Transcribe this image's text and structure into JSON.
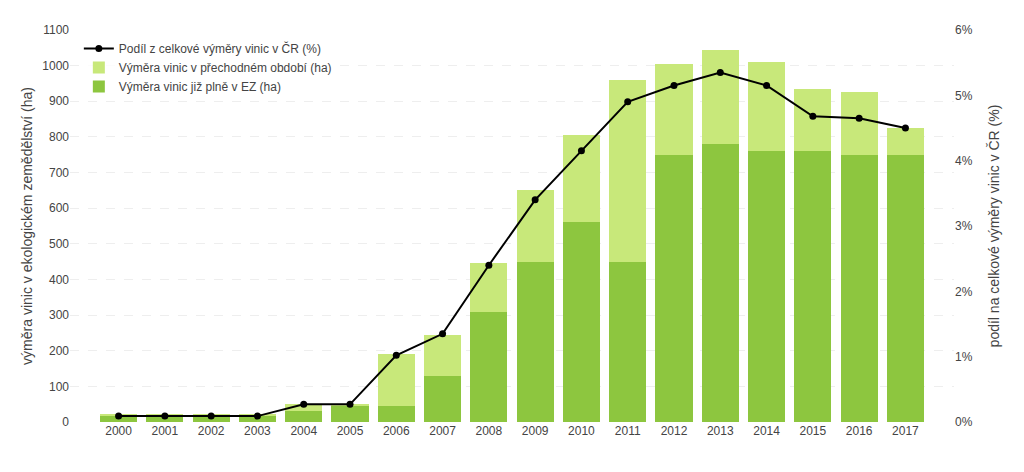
{
  "chart_data": {
    "type": "bar",
    "stacked": true,
    "categories": [
      "2000",
      "2001",
      "2002",
      "2003",
      "2004",
      "2005",
      "2006",
      "2007",
      "2008",
      "2009",
      "2010",
      "2011",
      "2012",
      "2013",
      "2014",
      "2015",
      "2016",
      "2017"
    ],
    "series": [
      {
        "name": "Výměra vinic již plně v EZ (ha)",
        "color": "#8DC63F",
        "values": [
          17,
          17,
          17,
          17,
          30,
          45,
          45,
          130,
          310,
          450,
          560,
          450,
          750,
          780,
          760,
          760,
          750,
          750
        ]
      },
      {
        "name": "Výměra vinic v přechodném období (ha)",
        "color": "#C8E87A",
        "values": [
          3,
          3,
          3,
          3,
          20,
          5,
          145,
          115,
          135,
          200,
          245,
          510,
          255,
          265,
          250,
          175,
          175,
          75
        ]
      },
      {
        "name": "Podíl z celkové výměry vinic v ČR (%)",
        "type": "line",
        "axis": "y2",
        "color": "#000000",
        "marker": "circle",
        "values": [
          0.09,
          0.09,
          0.09,
          0.09,
          0.27,
          0.27,
          1.02,
          1.35,
          2.4,
          3.4,
          4.15,
          4.9,
          5.15,
          5.35,
          5.15,
          4.68,
          4.65,
          4.5
        ]
      }
    ],
    "ylabel": "výměra vinic v ekologickém zemědělství (ha)",
    "y2label": "podíl na celkové výměry vinic v ČR (%)",
    "ylim": [
      0,
      1100
    ],
    "yticks": [
      0,
      100,
      200,
      300,
      400,
      500,
      600,
      700,
      800,
      900,
      1000,
      1100
    ],
    "y2lim": [
      0,
      6
    ],
    "y2ticks": [
      {
        "value": 0,
        "label": "0%"
      },
      {
        "value": 1,
        "label": "1%"
      },
      {
        "value": 2,
        "label": "2%"
      },
      {
        "value": 3,
        "label": "3%"
      },
      {
        "value": 4,
        "label": "4%"
      },
      {
        "value": 5,
        "label": "5%"
      },
      {
        "value": 6,
        "label": "6%"
      }
    ],
    "grid": true,
    "legend": "upper left"
  }
}
